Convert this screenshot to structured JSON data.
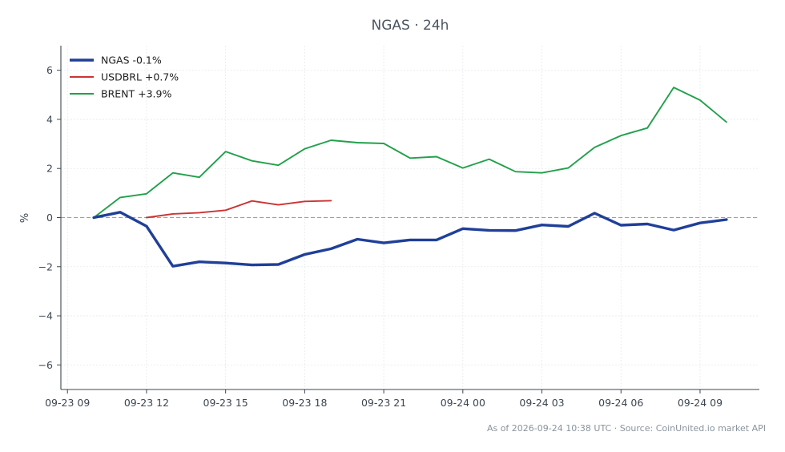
{
  "chart_data": {
    "type": "line",
    "title": "NGAS · 24h",
    "xlabel": "",
    "ylabel": "%",
    "x_ticks": [
      "09-23 09",
      "09-23 12",
      "09-23 15",
      "09-23 18",
      "09-23 21",
      "09-24 00",
      "09-24 03",
      "09-24 06",
      "09-24 09"
    ],
    "y_ticks": [
      "6",
      "4",
      "2",
      "0",
      "−2",
      "−4",
      "−6"
    ],
    "xlim": [
      "2026-09-23 08:45",
      "2026-09-24 11:15"
    ],
    "ylim": [
      -7,
      7
    ],
    "grid": true,
    "legend_position": "top-left",
    "zero_line": 0,
    "series": [
      {
        "name": "NGAS -0.1%",
        "color": "#1f3f99",
        "emphasis": "thick",
        "x": [
          "2026-09-23 10:00",
          "2026-09-23 11:00",
          "2026-09-23 12:00",
          "2026-09-23 13:00",
          "2026-09-23 14:00",
          "2026-09-23 15:00",
          "2026-09-23 16:00",
          "2026-09-23 17:00",
          "2026-09-23 18:00",
          "2026-09-23 19:00",
          "2026-09-23 20:00",
          "2026-09-23 21:00",
          "2026-09-23 22:00",
          "2026-09-23 23:00",
          "2026-09-24 00:00",
          "2026-09-24 01:00",
          "2026-09-24 02:00",
          "2026-09-24 03:00",
          "2026-09-24 04:00",
          "2026-09-24 05:00",
          "2026-09-24 06:00",
          "2026-09-24 07:00",
          "2026-09-24 08:00",
          "2026-09-24 09:00",
          "2026-09-24 10:00"
        ],
        "values": [
          0.0,
          0.22,
          -0.35,
          -1.98,
          -1.8,
          -1.85,
          -1.93,
          -1.91,
          -1.5,
          -1.27,
          -0.88,
          -1.03,
          -0.91,
          -0.91,
          -0.45,
          -0.52,
          -0.53,
          -0.3,
          -0.36,
          0.18,
          -0.31,
          -0.26,
          -0.51,
          -0.22,
          -0.08
        ]
      },
      {
        "name": "USDBRL +0.7%",
        "color": "#cc3333",
        "emphasis": "normal",
        "x": [
          "2026-09-23 12:00",
          "2026-09-23 13:00",
          "2026-09-23 14:00",
          "2026-09-23 15:00",
          "2026-09-23 16:00",
          "2026-09-23 17:00",
          "2026-09-23 18:00",
          "2026-09-23 19:00"
        ],
        "values": [
          0.0,
          0.15,
          0.2,
          0.3,
          0.68,
          0.52,
          0.66,
          0.69
        ]
      },
      {
        "name": "BRENT +3.9%",
        "color": "#22a04b",
        "emphasis": "normal",
        "x": [
          "2026-09-23 10:00",
          "2026-09-23 11:00",
          "2026-09-23 12:00",
          "2026-09-23 13:00",
          "2026-09-23 14:00",
          "2026-09-23 15:00",
          "2026-09-23 16:00",
          "2026-09-23 17:00",
          "2026-09-23 18:00",
          "2026-09-23 19:00",
          "2026-09-23 20:00",
          "2026-09-23 21:00",
          "2026-09-23 22:00",
          "2026-09-23 23:00",
          "2026-09-24 00:00",
          "2026-09-24 01:00",
          "2026-09-24 02:00",
          "2026-09-24 03:00",
          "2026-09-24 04:00",
          "2026-09-24 05:00",
          "2026-09-24 06:00",
          "2026-09-24 07:00",
          "2026-09-24 08:00",
          "2026-09-24 09:00",
          "2026-09-24 10:00"
        ],
        "values": [
          0.0,
          0.82,
          0.97,
          1.82,
          1.64,
          2.69,
          2.31,
          2.13,
          2.8,
          3.15,
          3.05,
          3.02,
          2.42,
          2.48,
          2.02,
          2.38,
          1.87,
          1.82,
          2.02,
          2.86,
          3.34,
          3.65,
          5.3,
          4.78,
          3.89
        ]
      }
    ]
  },
  "footer": {
    "note": "As of 2026-09-24 10:38 UTC · Source: CoinUnited.io market API"
  },
  "colors": {
    "axis": "#3d4650",
    "grid": "#e6e9ec",
    "zero_line": "#8fa1b3"
  }
}
